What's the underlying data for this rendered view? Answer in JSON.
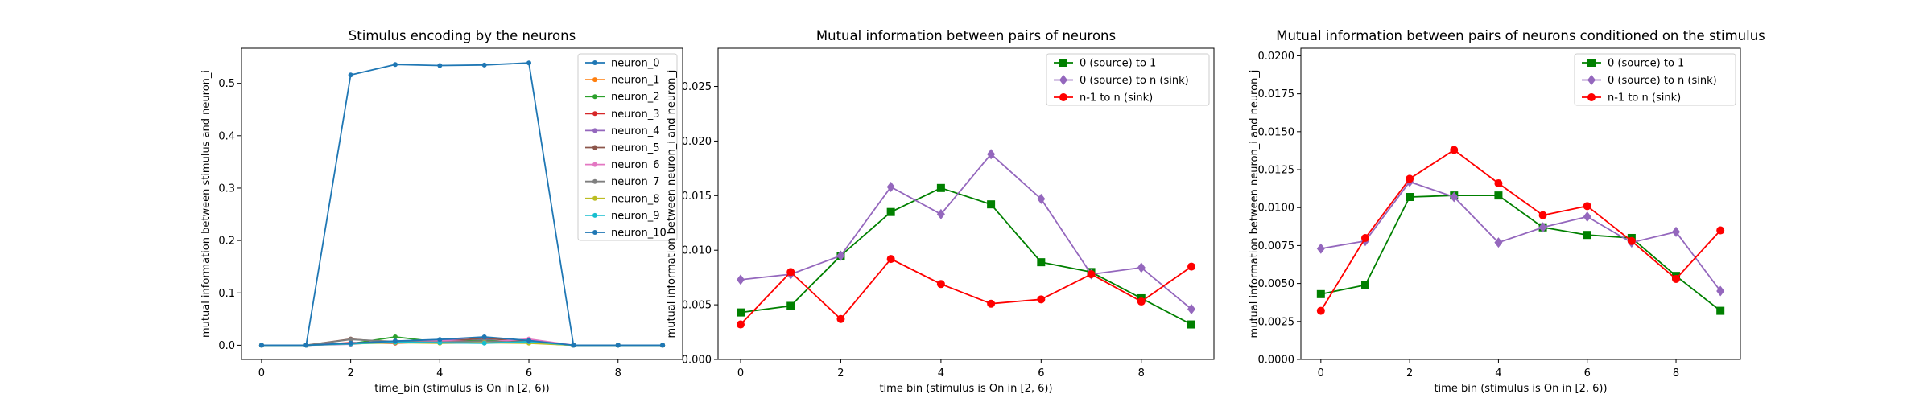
{
  "chart_data": [
    {
      "type": "line",
      "title": "Stimulus encoding by the neurons",
      "xlabel": "time_bin (stimulus is On in [2, 6))",
      "ylabel": "mutual information between stimulus and neuron_i",
      "xlim": [
        -0.45,
        9.45
      ],
      "ylim": [
        -0.027,
        0.567
      ],
      "xticks": [
        0,
        2,
        4,
        6,
        8
      ],
      "yticks": [
        0.0,
        0.1,
        0.2,
        0.3,
        0.4,
        0.5
      ],
      "ytick_labels": [
        "0.0",
        "0.1",
        "0.2",
        "0.3",
        "0.4",
        "0.5"
      ],
      "grid": false,
      "legend": "upper right",
      "x": [
        0,
        1,
        2,
        3,
        4,
        5,
        6,
        7,
        8,
        9
      ],
      "series": [
        {
          "name": "neuron_0",
          "color": "#1f77b4",
          "marker": "dot",
          "values": [
            0.0,
            0.0,
            0.516,
            0.536,
            0.534,
            0.535,
            0.539,
            0.0,
            0.0,
            0.0
          ]
        },
        {
          "name": "neuron_1",
          "color": "#ff7f0e",
          "marker": "dot",
          "values": [
            0.0,
            0.0,
            0.004,
            0.006,
            0.005,
            0.007,
            0.006,
            0.0,
            0.0,
            0.0
          ]
        },
        {
          "name": "neuron_2",
          "color": "#2ca02c",
          "marker": "dot",
          "values": [
            0.0,
            0.0,
            0.003,
            0.016,
            0.006,
            0.01,
            0.005,
            0.0,
            0.0,
            0.0
          ]
        },
        {
          "name": "neuron_3",
          "color": "#d62728",
          "marker": "dot",
          "values": [
            0.0,
            0.0,
            0.005,
            0.004,
            0.007,
            0.006,
            0.008,
            0.0,
            0.0,
            0.0
          ]
        },
        {
          "name": "neuron_4",
          "color": "#9467bd",
          "marker": "dot",
          "values": [
            0.0,
            0.0,
            0.002,
            0.008,
            0.01,
            0.012,
            0.01,
            0.0,
            0.0,
            0.0
          ]
        },
        {
          "name": "neuron_5",
          "color": "#8c564b",
          "marker": "dot",
          "values": [
            0.0,
            0.0,
            0.012,
            0.005,
            0.006,
            0.014,
            0.006,
            0.0,
            0.0,
            0.0
          ]
        },
        {
          "name": "neuron_6",
          "color": "#e377c2",
          "marker": "dot",
          "values": [
            0.0,
            0.0,
            0.004,
            0.006,
            0.009,
            0.006,
            0.012,
            0.0,
            0.0,
            0.0
          ]
        },
        {
          "name": "neuron_7",
          "color": "#7f7f7f",
          "marker": "dot",
          "values": [
            0.0,
            0.0,
            0.011,
            0.007,
            0.006,
            0.008,
            0.005,
            0.0,
            0.0,
            0.0
          ]
        },
        {
          "name": "neuron_8",
          "color": "#bcbd22",
          "marker": "dot",
          "values": [
            0.0,
            0.0,
            0.003,
            0.005,
            0.004,
            0.005,
            0.004,
            0.0,
            0.0,
            0.0
          ]
        },
        {
          "name": "neuron_9",
          "color": "#17becf",
          "marker": "dot",
          "values": [
            0.0,
            0.0,
            0.003,
            0.006,
            0.005,
            0.004,
            0.007,
            0.0,
            0.0,
            0.0
          ]
        },
        {
          "name": "neuron_10",
          "color": "#1f77b4",
          "marker": "dot",
          "values": [
            0.0,
            0.0,
            0.004,
            0.008,
            0.011,
            0.016,
            0.009,
            0.0,
            0.0,
            0.0
          ]
        }
      ]
    },
    {
      "type": "line",
      "title": "Mutual information between pairs of neurons",
      "xlabel": "time bin (stimulus is On in [2, 6))",
      "ylabel": "mutual information between neuron_i and neuron_j",
      "xlim": [
        -0.45,
        9.45
      ],
      "ylim": [
        0.0,
        0.0285
      ],
      "xticks": [
        0,
        2,
        4,
        6,
        8
      ],
      "yticks": [
        0.0,
        0.005,
        0.01,
        0.015,
        0.02,
        0.025
      ],
      "ytick_labels": [
        "0.000",
        "0.005",
        "0.010",
        "0.015",
        "0.020",
        "0.025"
      ],
      "grid": false,
      "legend": "upper right",
      "x": [
        0,
        1,
        2,
        3,
        4,
        5,
        6,
        7,
        8,
        9
      ],
      "series": [
        {
          "name": "0 (source) to 1",
          "color": "#008000",
          "marker": "square",
          "values": [
            0.0043,
            0.0049,
            0.0095,
            0.0135,
            0.0157,
            0.0142,
            0.0089,
            0.008,
            0.0056,
            0.0032
          ]
        },
        {
          "name": "0 (source) to n (sink)",
          "color": "#9467bd",
          "marker": "diamond",
          "values": [
            0.0073,
            0.0078,
            0.0095,
            0.0158,
            0.0133,
            0.0188,
            0.0147,
            0.0078,
            0.0084,
            0.0046
          ]
        },
        {
          "name": "n-1 to n (sink)",
          "color": "#ff0000",
          "marker": "circle",
          "values": [
            0.0032,
            0.008,
            0.0037,
            0.0092,
            0.0069,
            0.0051,
            0.0055,
            0.0078,
            0.0053,
            0.0085
          ]
        }
      ]
    },
    {
      "type": "line",
      "title": "Mutual information between pairs of neurons conditioned on the stimulus",
      "xlabel": "time bin (stimulus is On in [2, 6))",
      "ylabel": "mutual information between neuron_i and neuron_j",
      "xlim": [
        -0.45,
        9.45
      ],
      "ylim": [
        0.0,
        0.0205
      ],
      "xticks": [
        0,
        2,
        4,
        6,
        8
      ],
      "yticks": [
        0.0,
        0.0025,
        0.005,
        0.0075,
        0.01,
        0.0125,
        0.015,
        0.0175,
        0.02
      ],
      "ytick_labels": [
        "0.0000",
        "0.0025",
        "0.0050",
        "0.0075",
        "0.0100",
        "0.0125",
        "0.0150",
        "0.0175",
        "0.0200"
      ],
      "grid": false,
      "legend": "upper right",
      "x": [
        0,
        1,
        2,
        3,
        4,
        5,
        6,
        7,
        8,
        9
      ],
      "series": [
        {
          "name": "0 (source) to 1",
          "color": "#008000",
          "marker": "square",
          "values": [
            0.0043,
            0.0049,
            0.0107,
            0.0108,
            0.0108,
            0.0087,
            0.0082,
            0.008,
            0.0055,
            0.0032
          ]
        },
        {
          "name": "0 (source) to n (sink)",
          "color": "#9467bd",
          "marker": "diamond",
          "values": [
            0.0073,
            0.0078,
            0.0117,
            0.0107,
            0.0077,
            0.0087,
            0.0094,
            0.0077,
            0.0084,
            0.0045
          ]
        },
        {
          "name": "n-1 to n (sink)",
          "color": "#ff0000",
          "marker": "circle",
          "values": [
            0.0032,
            0.008,
            0.0119,
            0.0138,
            0.0116,
            0.0095,
            0.0101,
            0.0078,
            0.0053,
            0.0085
          ]
        }
      ]
    }
  ]
}
